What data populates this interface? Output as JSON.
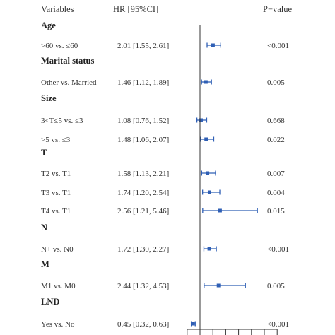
{
  "chart_data": {
    "type": "forest",
    "columns": {
      "variable": "Variables",
      "hr": "HR [95%CI]",
      "p": "P−value"
    },
    "reference_line": 1,
    "x_ticks_shown": 8,
    "point_color": "#2f5fb5",
    "groups": [
      {
        "name": "Age",
        "rows": [
          {
            "label": ">60 vs. ≤60",
            "hr_text": "2.01 [1.55, 2.61]",
            "p": "<0.001",
            "hr": 2.01,
            "lo": 1.55,
            "hi": 2.61
          }
        ]
      },
      {
        "name": "Marital status",
        "rows": [
          {
            "label": "Other vs. Married",
            "hr_text": "1.46 [1.12, 1.89]",
            "p": "0.005",
            "hr": 1.46,
            "lo": 1.12,
            "hi": 1.89
          }
        ]
      },
      {
        "name": "Size",
        "rows": [
          {
            "label": "3<T≤5 vs. ≤3",
            "hr_text": "1.08  [0.76,  1.52]",
            "p": "0.668",
            "hr": 1.08,
            "lo": 0.76,
            "hi": 1.52
          },
          {
            "label": ">5 vs. ≤3",
            "hr_text": "1.48 [1.06, 2.07]",
            "p": "0.022",
            "hr": 1.48,
            "lo": 1.06,
            "hi": 2.07
          }
        ]
      },
      {
        "name": "T",
        "rows": [
          {
            "label": "T2 vs. T1",
            "hr_text": "1.58  [1.13,  2.21]",
            "p": "0.007",
            "hr": 1.58,
            "lo": 1.13,
            "hi": 2.21
          },
          {
            "label": "T3 vs. T1",
            "hr_text": "1.74  [1.20,  2.54]",
            "p": "0.004",
            "hr": 1.74,
            "lo": 1.2,
            "hi": 2.54
          },
          {
            "label": "T4 vs. T1",
            "hr_text": "2.56 [1.21, 5.46]",
            "p": "0.015",
            "hr": 2.56,
            "lo": 1.21,
            "hi": 5.46
          }
        ]
      },
      {
        "name": "N",
        "rows": [
          {
            "label": "N+ vs. N0",
            "hr_text": "1.72 [1.30, 2.27]",
            "p": "<0.001",
            "hr": 1.72,
            "lo": 1.3,
            "hi": 2.27
          }
        ]
      },
      {
        "name": "M",
        "rows": [
          {
            "label": "M1 vs. M0",
            "hr_text": "2.44 [1.32, 4.53]",
            "p": "0.005",
            "hr": 2.44,
            "lo": 1.32,
            "hi": 4.53
          }
        ]
      },
      {
        "name": "LND",
        "rows": [
          {
            "label": "Yes vs. No",
            "hr_text": "0.45 [0.32, 0.63]",
            "p": "<0.001",
            "hr": 0.45,
            "lo": 0.32,
            "hi": 0.63
          }
        ]
      }
    ]
  }
}
